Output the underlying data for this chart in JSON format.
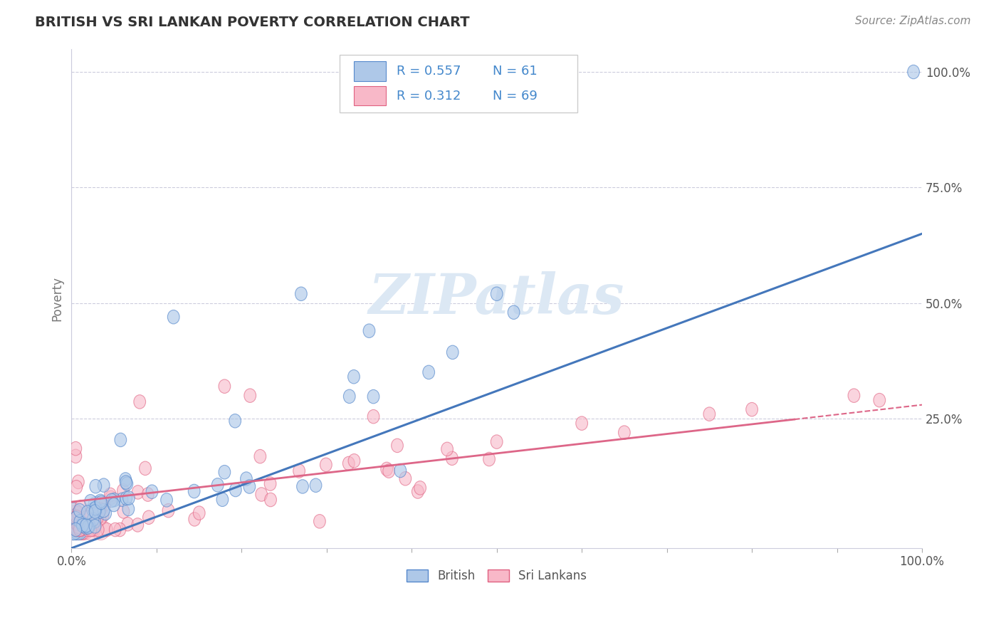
{
  "title": "BRITISH VS SRI LANKAN POVERTY CORRELATION CHART",
  "source": "Source: ZipAtlas.com",
  "ylabel": "Poverty",
  "xlim": [
    0,
    1
  ],
  "ylim": [
    -0.03,
    1.05
  ],
  "british_R": 0.557,
  "british_N": 61,
  "srilankan_R": 0.312,
  "srilankan_N": 69,
  "blue_fill": "#aec8e8",
  "blue_edge": "#5588cc",
  "pink_fill": "#f8b8c8",
  "pink_edge": "#e06080",
  "blue_line": "#4477bb",
  "pink_line": "#dd6688",
  "title_color": "#333333",
  "source_color": "#888888",
  "legend_color": "#4488cc",
  "legend_n_color": "#333333",
  "watermark_color": "#dce8f4",
  "grid_color": "#ccccdd",
  "background": "#ffffff"
}
